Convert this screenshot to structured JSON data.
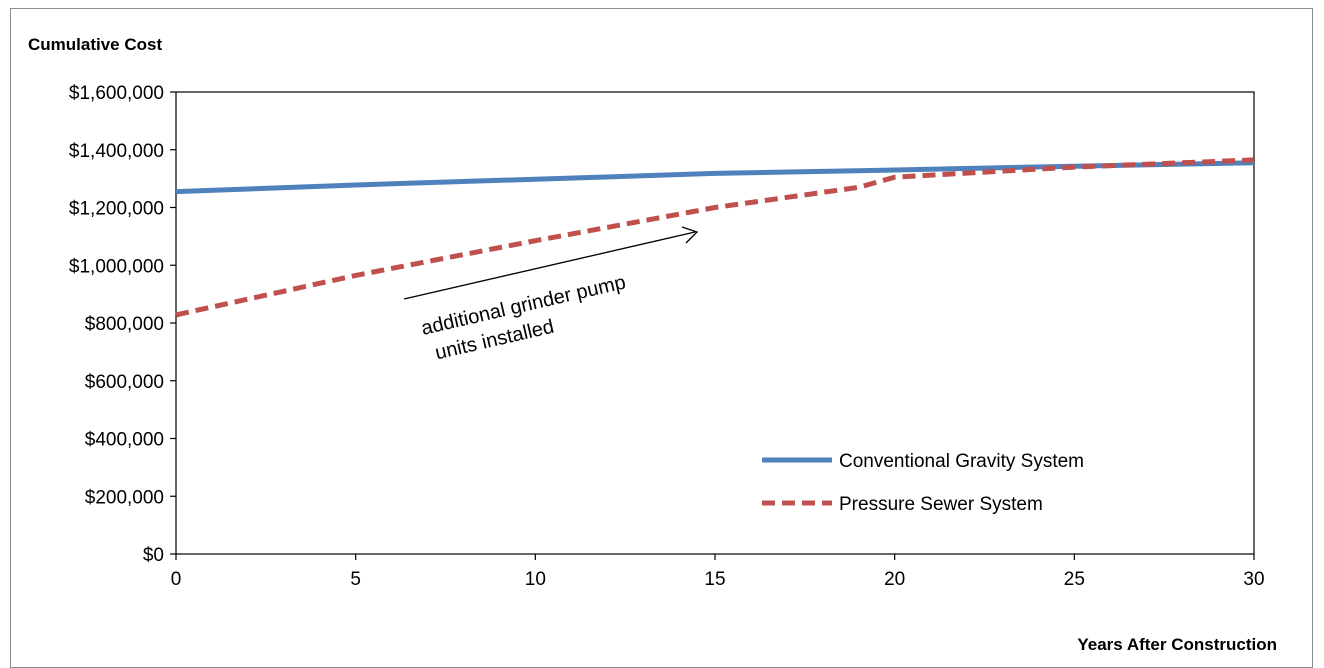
{
  "chart_data": {
    "type": "line",
    "title": "",
    "ylabel": "Cumulative Cost",
    "xlabel": "Years After Construction",
    "xlim": [
      0,
      30
    ],
    "ylim": [
      0,
      1600000
    ],
    "x_ticks": [
      0,
      5,
      10,
      15,
      20,
      25,
      30
    ],
    "x_tick_labels": [
      "0",
      "5",
      "10",
      "15",
      "20",
      "25",
      "30"
    ],
    "y_ticks": [
      0,
      200000,
      400000,
      600000,
      800000,
      1000000,
      1200000,
      1400000,
      1600000
    ],
    "y_tick_labels": [
      "$0",
      "$200,000",
      "$400,000",
      "$600,000",
      "$800,000",
      "$1,000,000",
      "$1,200,000",
      "$1,400,000",
      "$1,600,000"
    ],
    "grid": false,
    "legend_position": "bottom-right",
    "series": [
      {
        "name": "Conventional Gravity System",
        "color": "#4f81bd",
        "style": "solid",
        "x": [
          0,
          5,
          10,
          15,
          20,
          25,
          30
        ],
        "y": [
          1255000,
          1278000,
          1298000,
          1318000,
          1330000,
          1343000,
          1355000
        ]
      },
      {
        "name": "Pressure Sewer System",
        "color": "#c0504d",
        "style": "dashed",
        "x": [
          0,
          5,
          10,
          15,
          19,
          20,
          25,
          30
        ],
        "y": [
          828000,
          965000,
          1085000,
          1200000,
          1270000,
          1305000,
          1340000,
          1365000
        ]
      }
    ],
    "annotations": [
      {
        "text_line1": "additional grinder pump",
        "text_line2": "units installed"
      }
    ]
  }
}
